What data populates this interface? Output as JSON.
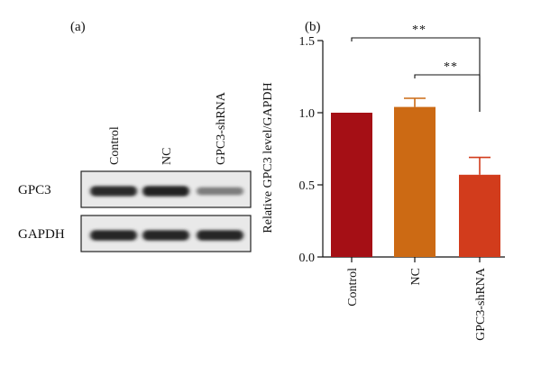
{
  "panels": {
    "a": "(a)",
    "b": "(b)"
  },
  "blot": {
    "lanes": [
      "Control",
      "NC",
      "GPC3-shRNA"
    ],
    "rows": [
      {
        "label": "GPC3",
        "intensity": [
          0.88,
          0.92,
          0.45
        ]
      },
      {
        "label": "GAPDH",
        "intensity": [
          0.9,
          0.9,
          0.9
        ]
      }
    ]
  },
  "chart_data": {
    "type": "bar",
    "categories": [
      "Control",
      "NC",
      "GPC3-shRNA"
    ],
    "values": [
      1.0,
      1.04,
      0.57
    ],
    "errors": [
      0.0,
      0.06,
      0.12
    ],
    "ylabel": "Relative GPC3 level/GAPDH",
    "xlabel": "",
    "ylim": [
      0,
      1.5
    ],
    "yticks": [
      "0.0",
      "0.5",
      "1.0",
      "1.5"
    ],
    "bar_colors": [
      "#a50f15",
      "#cc6a14",
      "#d23c1c"
    ],
    "significance": [
      {
        "from": "Control",
        "to": "GPC3-shRNA",
        "label": "**"
      },
      {
        "from": "NC",
        "to": "GPC3-shRNA",
        "label": "**"
      }
    ]
  }
}
